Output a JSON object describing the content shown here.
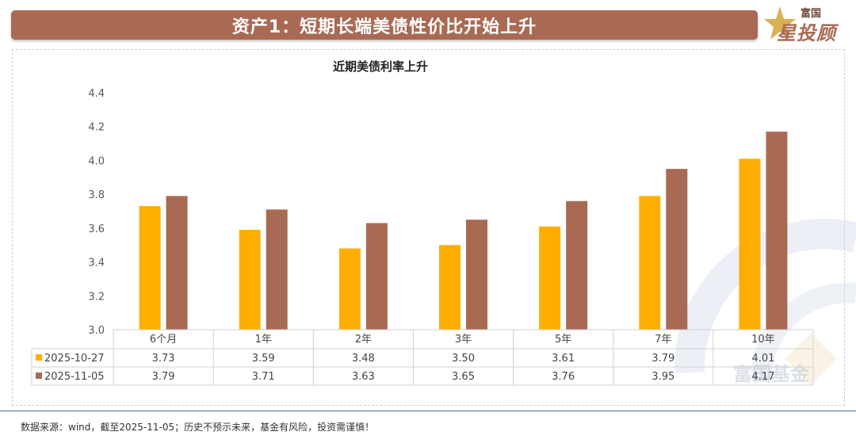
{
  "banner": {
    "title": "资产1：短期长端美债性价比开始上升"
  },
  "logo": {
    "top": "富国",
    "bottom": "星投顾"
  },
  "watermark": {
    "text": "富国基金"
  },
  "footer": {
    "source": "数据来源：wind，截至2025-11-05；历史不预示未来，基金有风险，投资需谨慎！"
  },
  "chart_data": {
    "type": "bar",
    "title": "近期美债利率上升",
    "categories": [
      "6个月",
      "1年",
      "2年",
      "3年",
      "5年",
      "7年",
      "10年"
    ],
    "series": [
      {
        "name": "2025-10-27",
        "color": "#ffae00",
        "values": [
          3.73,
          3.59,
          3.48,
          3.5,
          3.61,
          3.79,
          4.01
        ]
      },
      {
        "name": "2025-11-05",
        "color": "#a96a54",
        "values": [
          3.79,
          3.71,
          3.63,
          3.65,
          3.76,
          3.95,
          4.17
        ]
      }
    ],
    "ylim": [
      3.0,
      4.4
    ],
    "yticks": [
      "3.0",
      "3.2",
      "3.4",
      "3.6",
      "3.8",
      "4.0",
      "4.2",
      "4.4"
    ],
    "table_values": [
      [
        "3.73",
        "3.59",
        "3.48",
        "3.50",
        "3.61",
        "3.79",
        "4.01"
      ],
      [
        "3.79",
        "3.71",
        "3.63",
        "3.65",
        "3.76",
        "3.95",
        "4.17"
      ]
    ],
    "legend": "data-table"
  }
}
